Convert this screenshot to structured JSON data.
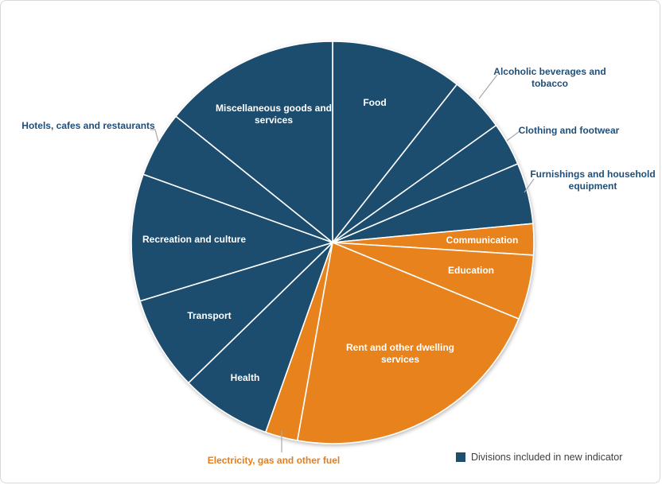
{
  "chart_data": {
    "type": "pie",
    "direction": "clockwise",
    "start_angle_deg": 0,
    "values_note": "no numeric labels shown; shares estimated from slice angles, percent of total",
    "slices": [
      {
        "label": "Food",
        "value_pct": 10.6,
        "group": "included",
        "label_position": "inside"
      },
      {
        "label": "Alcoholic beverages and tobacco",
        "value_pct": 4.5,
        "group": "included",
        "label_position": "outside"
      },
      {
        "label": "Clothing and footwear",
        "value_pct": 3.5,
        "group": "included",
        "label_position": "outside"
      },
      {
        "label": "Furnishings and household equipment",
        "value_pct": 4.9,
        "group": "included",
        "label_position": "outside"
      },
      {
        "label": "Communication",
        "value_pct": 2.5,
        "group": "excluded",
        "label_position": "inside"
      },
      {
        "label": "Education",
        "value_pct": 5.2,
        "group": "excluded",
        "label_position": "inside"
      },
      {
        "label": "Rent and other dwelling services",
        "value_pct": 21.6,
        "group": "excluded",
        "label_position": "inside"
      },
      {
        "label": "Electricity, gas and other fuel",
        "value_pct": 2.6,
        "group": "excluded",
        "label_position": "outside"
      },
      {
        "label": "Health",
        "value_pct": 7.3,
        "group": "included",
        "label_position": "inside"
      },
      {
        "label": "Transport",
        "value_pct": 7.6,
        "group": "included",
        "label_position": "inside"
      },
      {
        "label": "Recreation and culture",
        "value_pct": 10.2,
        "group": "included",
        "label_position": "inside"
      },
      {
        "label": "Hotels, cafes and restaurants",
        "value_pct": 5.3,
        "group": "included",
        "label_position": "outside"
      },
      {
        "label": "Miscellaneous goods and services",
        "value_pct": 14.2,
        "group": "included",
        "label_position": "inside"
      }
    ],
    "groups": {
      "included": {
        "color": "#1F4E6E",
        "label_color": "#1F4E79"
      },
      "excluded": {
        "color": "#E8821E",
        "label_color": "#E57E1A"
      }
    },
    "inside_label_color": "#FFFFFF",
    "leader_line_color": "#A9A9A9",
    "legend": {
      "position": "bottom-right",
      "entries": [
        {
          "label": "Divisions included in new indicator",
          "color": "#1F4E6E"
        }
      ]
    }
  }
}
